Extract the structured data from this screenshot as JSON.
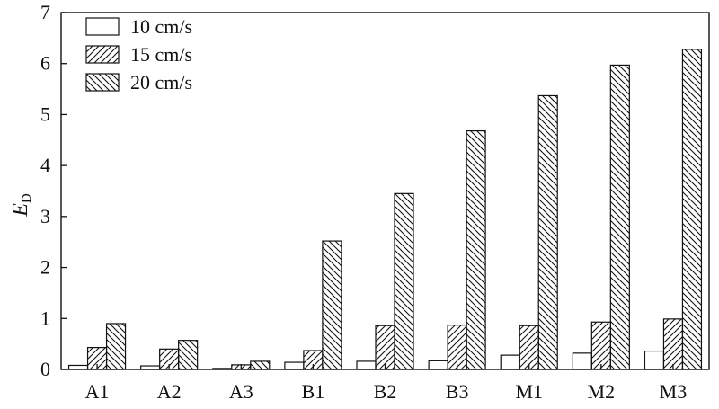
{
  "chart_data": {
    "type": "bar",
    "categories": [
      "A1",
      "A2",
      "A3",
      "B1",
      "B2",
      "B3",
      "M1",
      "M2",
      "M3"
    ],
    "series": [
      {
        "name": "10 cm/s",
        "pattern": "none",
        "values": [
          0.08,
          0.07,
          0.02,
          0.14,
          0.16,
          0.17,
          0.28,
          0.32,
          0.36
        ]
      },
      {
        "name": "15 cm/s",
        "pattern": "diag-up",
        "values": [
          0.43,
          0.4,
          0.09,
          0.37,
          0.86,
          0.87,
          0.86,
          0.93,
          0.99
        ]
      },
      {
        "name": "20 cm/s",
        "pattern": "diag-down",
        "values": [
          0.9,
          0.57,
          0.16,
          2.52,
          3.45,
          4.68,
          5.37,
          5.97,
          6.28
        ]
      }
    ],
    "ylabel": "E",
    "ylabel_sub": "D",
    "xlabel": "",
    "ylim": [
      0,
      7
    ],
    "yticks": [
      "0",
      "1",
      "2",
      "3",
      "4",
      "5",
      "6",
      "7"
    ],
    "legend_position": "top-left",
    "grid": false,
    "colors": {
      "stroke": "#111111",
      "fill": "#ffffff"
    }
  }
}
